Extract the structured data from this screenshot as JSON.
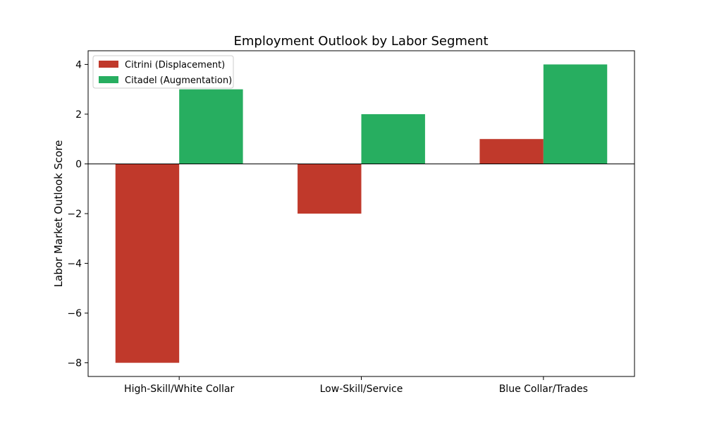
{
  "chart_data": {
    "type": "bar",
    "title": "Employment Outlook by Labor Segment",
    "xlabel": "",
    "ylabel": "Labor Market Outlook Score",
    "categories": [
      "High-Skill/White Collar",
      "Low-Skill/Service",
      "Blue Collar/Trades"
    ],
    "series": [
      {
        "name": "Citrini (Displacement)",
        "values": [
          -8,
          -2,
          1
        ],
        "color": "#c0392b"
      },
      {
        "name": "Citadel (Augmentation)",
        "values": [
          3,
          2,
          4
        ],
        "color": "#27ae60"
      }
    ],
    "ylim": [
      -8.55,
      4.55
    ],
    "yticks": [
      4,
      2,
      0,
      -2,
      -4,
      -6,
      -8
    ],
    "ytick_labels": [
      "4",
      "2",
      "0",
      "−2",
      "−4",
      "−6",
      "−8"
    ],
    "legend_position": "top-left",
    "grid": false,
    "zero_line": true
  }
}
